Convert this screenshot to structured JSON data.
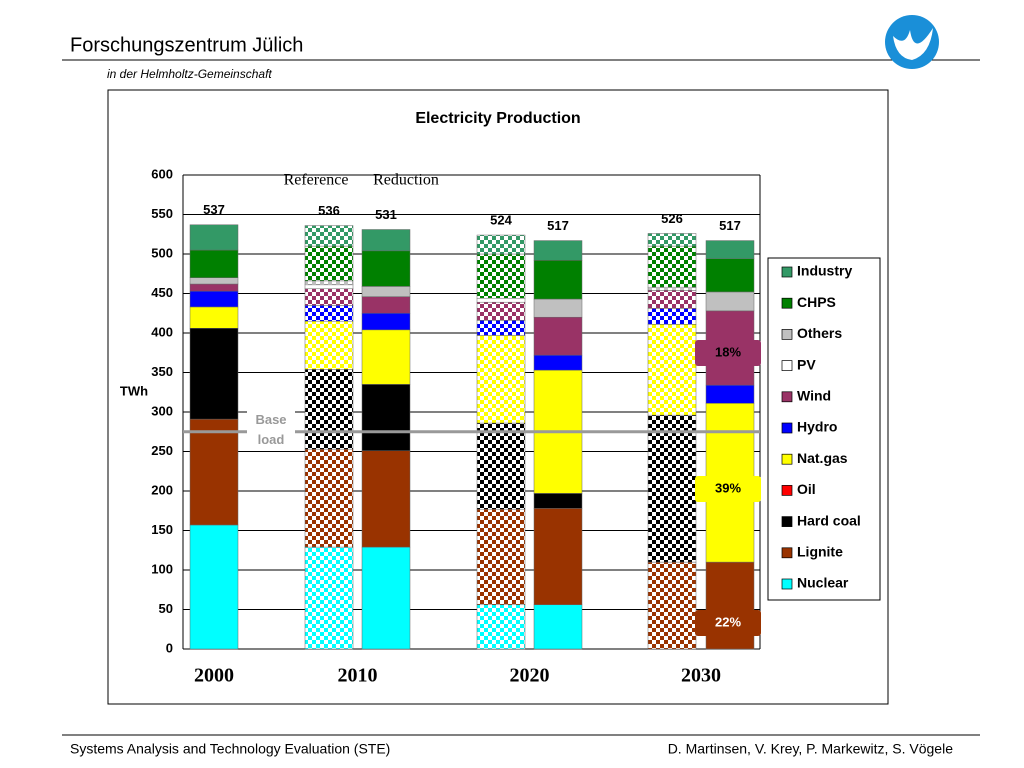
{
  "header": {
    "title": "Forschungszentrum Jülich",
    "subtitle": "in der Helmholtz-Gemeinschaft"
  },
  "footer": {
    "left": "Systems Analysis and Technology Evaluation (STE)",
    "right": "D. Martinsen, V. Krey, P. Markewitz, S. Vögele"
  },
  "chart_data": {
    "type": "stacked_bar",
    "title": "Electricity Production",
    "y_label": "TWh",
    "categories": [
      "2000",
      "2010",
      null,
      "2020",
      null,
      "2030",
      null
    ],
    "patterned": [
      false,
      true,
      false,
      true,
      false,
      true,
      false
    ],
    "totals": [
      537,
      536,
      531,
      524,
      517,
      526,
      517
    ],
    "annotations": [
      "Reference",
      "Reduction"
    ],
    "shares": [
      "18%",
      "39%",
      "22%"
    ],
    "baseline": {
      "value": 275,
      "label": "Base load"
    },
    "ylim": [
      0,
      600
    ],
    "yticks": [
      0,
      50,
      100,
      150,
      200,
      250,
      300,
      350,
      400,
      450,
      500,
      550,
      600
    ],
    "grid": true,
    "series": [
      {
        "name": "Nuclear",
        "color": "#00ffff",
        "values": [
          157,
          129,
          129,
          56,
          56,
          0,
          0
        ]
      },
      {
        "name": "Lignite",
        "color": "#993300",
        "values": [
          134,
          124,
          122,
          121,
          122,
          110,
          110
        ]
      },
      {
        "name": "Hard coal",
        "color": "#000000",
        "values": [
          115,
          101,
          84,
          109,
          19,
          186,
          0
        ]
      },
      {
        "name": "Oil",
        "color": "#ff0000",
        "values": [
          0,
          0,
          0,
          0,
          0,
          0,
          0
        ]
      },
      {
        "name": "Nat.gas",
        "color": "#ffff00",
        "values": [
          27,
          61,
          69,
          111,
          156,
          115,
          201
        ]
      },
      {
        "name": "Hydro",
        "color": "#0000ff",
        "values": [
          20,
          20,
          21,
          19,
          19,
          20,
          23
        ]
      },
      {
        "name": "Wind",
        "color": "#993366",
        "values": [
          9,
          21,
          21,
          23,
          48,
          23,
          94
        ]
      },
      {
        "name": "PV",
        "color": "#ffffff",
        "values": [
          0,
          5,
          0,
          5,
          0,
          0,
          0
        ]
      },
      {
        "name": "Others",
        "color": "#c0c0c0",
        "values": [
          8,
          5,
          13,
          0,
          23,
          4,
          24
        ]
      },
      {
        "name": "CHPS",
        "color": "#008000",
        "values": [
          35,
          44,
          45,
          56,
          49,
          52,
          42
        ]
      },
      {
        "name": "Industry",
        "color": "#339966",
        "values": [
          32,
          26,
          27,
          24,
          25,
          16,
          23
        ]
      }
    ]
  }
}
